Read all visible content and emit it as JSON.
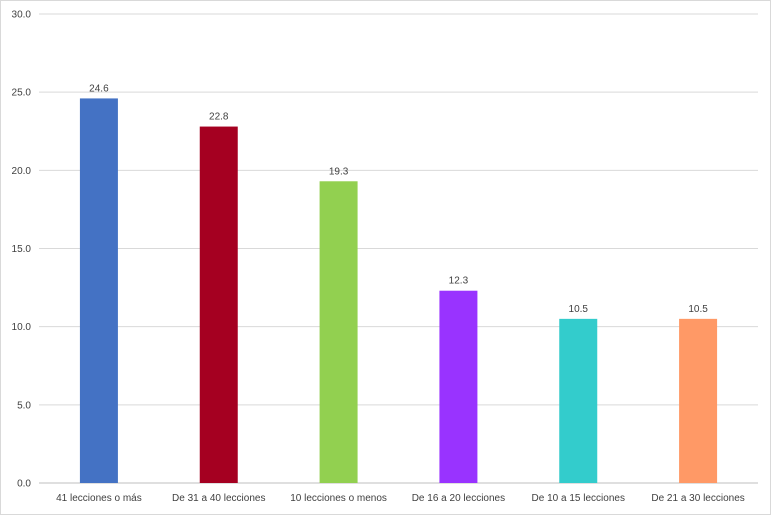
{
  "chart_data": {
    "type": "bar",
    "title": "",
    "xlabel": "",
    "ylabel": "",
    "categories": [
      "41 lecciones o más",
      "De 31 a 40 lecciones",
      "10 lecciones o menos",
      "De 16 a 20 lecciones",
      "De 10 a 15 lecciones",
      "De 21 a 30 lecciones"
    ],
    "values": [
      24.6,
      22.8,
      19.3,
      12.3,
      10.5,
      10.5
    ],
    "data_labels": [
      "24.6",
      "22.8",
      "19.3",
      "12.3",
      "10.5",
      "10.5"
    ],
    "colors": [
      "#4472C4",
      "#A50021",
      "#92D050",
      "#9933FF",
      "#33CCCC",
      "#FF9966"
    ],
    "ylim": [
      0,
      30
    ],
    "yticks": [
      "0.0",
      "5.0",
      "10.0",
      "15.0",
      "20.0",
      "25.0",
      "30.0"
    ],
    "grid": true,
    "legend": "none"
  }
}
